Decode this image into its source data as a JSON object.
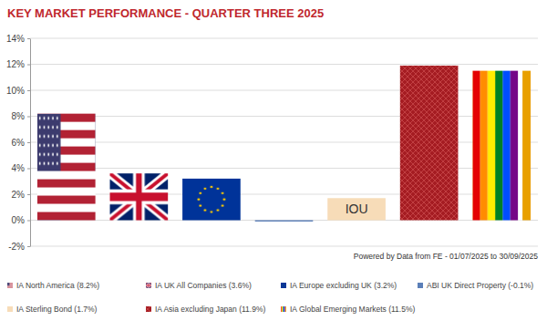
{
  "chart_data": {
    "type": "bar",
    "title": "KEY MARKET PERFORMANCE - QUARTER THREE 2025",
    "categories": [
      "IA North America (8.2%)",
      "IA UK All Companies (3.6%)",
      "IA Europe excluding UK (3.2%)",
      "ABI UK Direct Property (-0.1%)",
      "IA Sterling Bond (1.7%)",
      "IA Asia excluding Japan (11.9%)",
      "IA Global Emerging Markets (11.5%)"
    ],
    "values": [
      8.2,
      3.6,
      3.2,
      -0.1,
      1.7,
      11.9,
      11.5
    ],
    "colors": [
      "#b22234",
      "#012169",
      "#003399",
      "#5b7fb8",
      "#f7dcb8",
      "#a51c22",
      "#e8a000"
    ],
    "bar_labels": [
      null,
      null,
      null,
      null,
      "IOU",
      null,
      null
    ],
    "annotations": [
      "Powered by Data from FE - 01/07/2025 to 30/09/2025"
    ],
    "ylim": [
      -2,
      14
    ],
    "yticks": [
      {
        "value": -2,
        "label": "-2%"
      },
      {
        "value": 0,
        "label": "0%"
      },
      {
        "value": 2,
        "label": "2%"
      },
      {
        "value": 4,
        "label": "4%"
      },
      {
        "value": 6,
        "label": "6%"
      },
      {
        "value": 8,
        "label": "8%"
      },
      {
        "value": 10,
        "label": "10%"
      },
      {
        "value": 12,
        "label": "12%"
      },
      {
        "value": 14,
        "label": "14%"
      }
    ],
    "grid": true,
    "tick_labels": "y",
    "legend": "bottom"
  }
}
